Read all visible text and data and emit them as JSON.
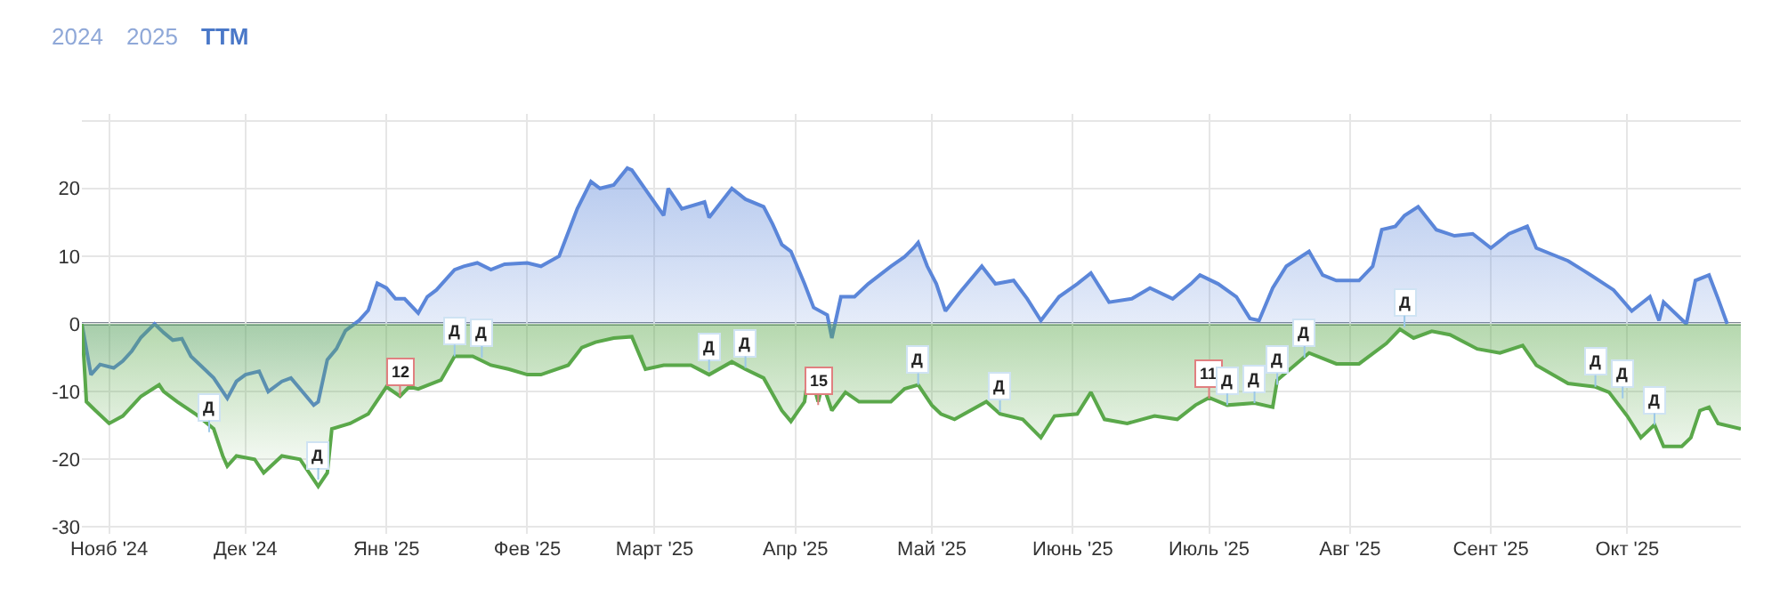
{
  "chart_data": {
    "type": "area",
    "annotations": [
      "2024",
      "2025",
      "TTM",
      {
        "text": "Д",
        "x": "2024-11-23",
        "y": -16
      },
      {
        "text": "Д",
        "x": "2024-12-17",
        "y": -23
      },
      {
        "text": "12",
        "x": "2025-01-04",
        "y": -10.7
      },
      {
        "text": "Д",
        "x": "2025-01-16",
        "y": -4.8
      },
      {
        "text": "Д",
        "x": "2025-01-22",
        "y": -5
      },
      {
        "text": "Д",
        "x": "2025-03-13",
        "y": -7
      },
      {
        "text": "Д",
        "x": "2025-03-21",
        "y": -6.5
      },
      {
        "text": "15",
        "x": "2025-04-06",
        "y": -12
      },
      {
        "text": "Д",
        "x": "2025-04-28",
        "y": -9
      },
      {
        "text": "Д",
        "x": "2025-05-16",
        "y": -13
      },
      {
        "text": "11",
        "x": "2025-07-01",
        "y": -11
      },
      {
        "text": "Д",
        "x": "2025-07-05",
        "y": -12
      },
      {
        "text": "Д",
        "x": "2025-07-11",
        "y": -11.7
      },
      {
        "text": "Д",
        "x": "2025-07-16",
        "y": -9
      },
      {
        "text": "Д",
        "x": "2025-07-22",
        "y": -5
      },
      {
        "text": "Д",
        "x": "2025-08-13",
        "y": -0.5
      },
      {
        "text": "Д",
        "x": "2025-09-24",
        "y": -9.3
      },
      {
        "text": "Д",
        "x": "2025-09-30",
        "y": -11
      },
      {
        "text": "Д",
        "x": "2025-10-07",
        "y": -14.9
      }
    ],
    "series": [
      {
        "color": "#5b86d9",
        "x": [
          "2024-10-26",
          "2024-10-28",
          "2024-10-30",
          "2024-11-02",
          "2024-11-04",
          "2024-11-06",
          "2024-11-08",
          "2024-11-11",
          "2024-11-13",
          "2024-11-15",
          "2024-11-17",
          "2024-11-19",
          "2024-11-22",
          "2024-11-24",
          "2024-11-27",
          "2024-11-29",
          "2024-12-01",
          "2024-12-04",
          "2024-12-06",
          "2024-12-09",
          "2024-12-11",
          "2024-12-13",
          "2024-12-16",
          "2024-12-17",
          "2024-12-19",
          "2024-12-21",
          "2024-12-23",
          "2024-12-26",
          "2024-12-28",
          "2024-12-30",
          "2025-01-01",
          "2025-01-03",
          "2025-01-05",
          "2025-01-08",
          "2025-01-10",
          "2025-01-12",
          "2025-01-16",
          "2025-01-18",
          "2025-01-21",
          "2025-01-24",
          "2025-01-27",
          "2025-02-01",
          "2025-02-04",
          "2025-02-08",
          "2025-02-12",
          "2025-02-15",
          "2025-02-17",
          "2025-02-20",
          "2025-02-23",
          "2025-02-24",
          "2025-03-03",
          "2025-03-04",
          "2025-03-07",
          "2025-03-12",
          "2025-03-13",
          "2025-03-18",
          "2025-03-21",
          "2025-03-25",
          "2025-03-27",
          "2025-03-29",
          "2025-03-31",
          "2025-04-03",
          "2025-04-05",
          "2025-04-08",
          "2025-04-09",
          "2025-04-11",
          "2025-04-14",
          "2025-04-17",
          "2025-04-22",
          "2025-04-25",
          "2025-04-27",
          "2025-04-28",
          "2025-04-30",
          "2025-05-02",
          "2025-05-04",
          "2025-05-07",
          "2025-05-12",
          "2025-05-15",
          "2025-05-19",
          "2025-05-22",
          "2025-05-25",
          "2025-05-29",
          "2025-06-02",
          "2025-06-05",
          "2025-06-09",
          "2025-06-14",
          "2025-06-18",
          "2025-06-23",
          "2025-06-27",
          "2025-06-29",
          "2025-07-03",
          "2025-07-07",
          "2025-07-10",
          "2025-07-12",
          "2025-07-15",
          "2025-07-18",
          "2025-07-23",
          "2025-07-26",
          "2025-07-29",
          "2025-08-03",
          "2025-08-06",
          "2025-08-08",
          "2025-08-11",
          "2025-08-13",
          "2025-08-16",
          "2025-08-20",
          "2025-08-24",
          "2025-08-28",
          "2025-09-01",
          "2025-09-05",
          "2025-09-09",
          "2025-09-11",
          "2025-09-18",
          "2025-09-23",
          "2025-09-28",
          "2025-10-02",
          "2025-10-06",
          "2025-10-08",
          "2025-10-09",
          "2025-10-14",
          "2025-10-16",
          "2025-10-19",
          "2025-10-21",
          "2025-10-23"
        ],
        "values": [
          0,
          -7.5,
          -6,
          -6.5,
          -5.5,
          -4,
          -2,
          0,
          -1.3,
          -2.4,
          -2.2,
          -4.8,
          -6.7,
          -8,
          -11,
          -8.5,
          -7.5,
          -7,
          -10,
          -8.5,
          -8,
          -9.6,
          -12,
          -11.5,
          -5.3,
          -3.7,
          -1,
          0.5,
          2,
          6,
          5.3,
          3.7,
          3.7,
          1.6,
          4,
          5,
          8,
          8.5,
          9,
          8,
          8.8,
          9,
          8.5,
          10,
          17,
          21,
          20,
          20.5,
          23,
          22.7,
          16,
          20,
          17,
          18,
          15.7,
          20,
          18.4,
          17.3,
          14.7,
          11.7,
          10.7,
          5.9,
          2.4,
          1.3,
          -2.1,
          4,
          4,
          5.9,
          8.5,
          9.9,
          11.2,
          12,
          8.5,
          5.9,
          1.9,
          4.5,
          8.5,
          5.9,
          6.4,
          3.7,
          0.5,
          4,
          5.9,
          7.5,
          3.2,
          3.7,
          5.3,
          3.7,
          5.9,
          7.2,
          5.9,
          4,
          0.8,
          0.5,
          5.3,
          8.5,
          10.7,
          7.2,
          6.4,
          6.4,
          8.5,
          13.9,
          14.4,
          16,
          17.3,
          13.9,
          13,
          13.3,
          11.2,
          13.3,
          14.4,
          11.2,
          9.3,
          7.2,
          5,
          1.9,
          4,
          0.5,
          3.2,
          0,
          6.4,
          7.2,
          3.7,
          0
        ]
      },
      {
        "color": "#5aa84a",
        "x": [
          "2024-10-26",
          "2024-10-27",
          "2024-10-29",
          "2024-11-01",
          "2024-11-04",
          "2024-11-08",
          "2024-11-12",
          "2024-11-13",
          "2024-11-16",
          "2024-11-20",
          "2024-11-24",
          "2024-11-26",
          "2024-11-27",
          "2024-11-29",
          "2024-12-03",
          "2024-12-05",
          "2024-12-09",
          "2024-12-13",
          "2024-12-15",
          "2024-12-17",
          "2024-12-19",
          "2024-12-20",
          "2024-12-24",
          "2024-12-28",
          "2025-01-01",
          "2025-01-04",
          "2025-01-06",
          "2025-01-08",
          "2025-01-13",
          "2025-01-16",
          "2025-01-20",
          "2025-01-24",
          "2025-01-28",
          "2025-02-01",
          "2025-02-04",
          "2025-02-10",
          "2025-02-13",
          "2025-02-16",
          "2025-02-20",
          "2025-02-24",
          "2025-02-27",
          "2025-03-03",
          "2025-03-09",
          "2025-03-13",
          "2025-03-18",
          "2025-03-21",
          "2025-03-25",
          "2025-03-29",
          "2025-03-31",
          "2025-04-03",
          "2025-04-04",
          "2025-04-06",
          "2025-04-07",
          "2025-04-09",
          "2025-04-12",
          "2025-04-15",
          "2025-04-18",
          "2025-04-22",
          "2025-04-25",
          "2025-04-28",
          "2025-05-01",
          "2025-05-03",
          "2025-05-06",
          "2025-05-13",
          "2025-05-16",
          "2025-05-21",
          "2025-05-25",
          "2025-05-28",
          "2025-06-02",
          "2025-06-05",
          "2025-06-08",
          "2025-06-13",
          "2025-06-19",
          "2025-06-24",
          "2025-06-28",
          "2025-07-01",
          "2025-07-05",
          "2025-07-11",
          "2025-07-15",
          "2025-07-16",
          "2025-07-23",
          "2025-07-29",
          "2025-08-03",
          "2025-08-09",
          "2025-08-12",
          "2025-08-15",
          "2025-08-19",
          "2025-08-23",
          "2025-08-29",
          "2025-09-03",
          "2025-09-08",
          "2025-09-11",
          "2025-09-18",
          "2025-09-24",
          "2025-09-27",
          "2025-10-01",
          "2025-10-04",
          "2025-10-07",
          "2025-10-09",
          "2025-10-13",
          "2025-10-15",
          "2025-10-17",
          "2025-10-19",
          "2025-10-21",
          "2025-10-26"
        ],
        "values": [
          0,
          -11.5,
          -12.8,
          -14.7,
          -13.6,
          -10.7,
          -9,
          -10,
          -11.5,
          -13.3,
          -15.5,
          -19.5,
          -21,
          -19.5,
          -20,
          -22,
          -19.5,
          -20,
          -22,
          -24,
          -22,
          -15.5,
          -14.7,
          -13.3,
          -9.3,
          -10.7,
          -9.3,
          -9.6,
          -8.3,
          -4.8,
          -4.8,
          -6.1,
          -6.7,
          -7.5,
          -7.5,
          -6.1,
          -3.5,
          -2.7,
          -2.1,
          -1.9,
          -6.7,
          -6.1,
          -6.1,
          -7.5,
          -5.6,
          -6.7,
          -8,
          -12.8,
          -14.4,
          -11.5,
          -6.7,
          -11.5,
          -8.8,
          -12.8,
          -10.1,
          -11.5,
          -11.5,
          -11.5,
          -9.6,
          -9,
          -12,
          -13.3,
          -14.1,
          -11.5,
          -13.3,
          -14.1,
          -16.8,
          -13.6,
          -13.3,
          -10.1,
          -14.1,
          -14.7,
          -13.6,
          -14.1,
          -12,
          -10.9,
          -12,
          -11.7,
          -12.3,
          -8.3,
          -4.3,
          -5.9,
          -5.9,
          -2.9,
          -0.8,
          -2.1,
          -1.1,
          -1.6,
          -3.7,
          -4.3,
          -3.2,
          -6.1,
          -8.8,
          -9.3,
          -10.1,
          -13.6,
          -16.8,
          -14.9,
          -18.1,
          -18.1,
          -16.8,
          -12.8,
          -12.3,
          -14.7,
          -15.5
        ]
      }
    ],
    "xlim": [
      "2024-10-26",
      "2025-10-26"
    ],
    "xticks": [
      {
        "value": "2024-11-01",
        "label": "Нояб '24"
      },
      {
        "value": "2024-12-01",
        "label": "Дек '24"
      },
      {
        "value": "2025-01-01",
        "label": "Янв '25"
      },
      {
        "value": "2025-02-01",
        "label": "Фев '25"
      },
      {
        "value": "2025-03-01",
        "label": "Март '25"
      },
      {
        "value": "2025-04-01",
        "label": "Апр '25"
      },
      {
        "value": "2025-05-01",
        "label": "Май '25"
      },
      {
        "value": "2025-06-01",
        "label": "Июнь '25"
      },
      {
        "value": "2025-07-01",
        "label": "Июль '25"
      },
      {
        "value": "2025-08-01",
        "label": "Авг '25"
      },
      {
        "value": "2025-09-01",
        "label": "Сент '25"
      },
      {
        "value": "2025-10-01",
        "label": "Окт '25"
      }
    ],
    "ylim": [
      -31,
      31
    ],
    "yticks": [
      -30,
      -20,
      -10,
      0,
      10,
      20,
      {
        "value": 30,
        "label": null
      }
    ],
    "ref_lines": [
      {
        "axis": "y",
        "value": 0,
        "color": "#7d8593"
      }
    ],
    "grid": true,
    "marker": "none",
    "line_style": "solid"
  }
}
